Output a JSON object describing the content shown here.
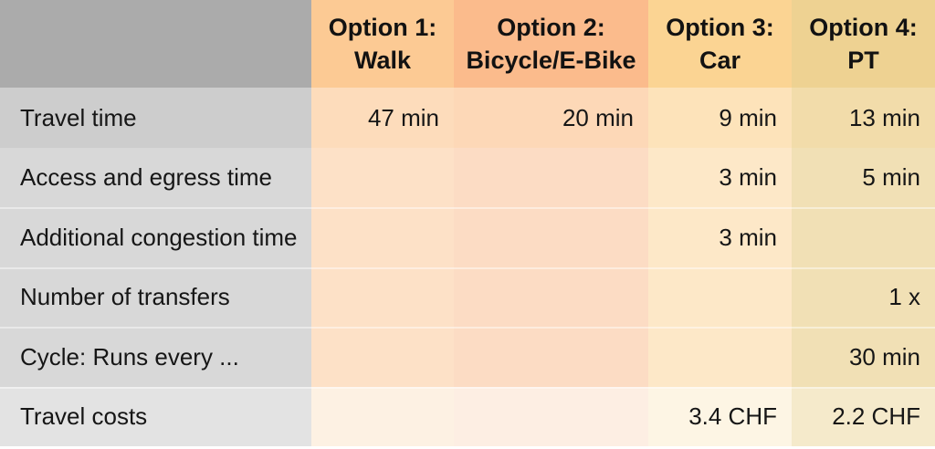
{
  "table": {
    "corner_label": "",
    "columns": [
      {
        "id": "walk",
        "header_line1": "Option 1:",
        "header_line2": "Walk",
        "header_color": "#fcca94"
      },
      {
        "id": "bicycle",
        "header_line1": "Option 2:",
        "header_line2": "Bicycle/E-Bike",
        "header_color": "#fbbb8c"
      },
      {
        "id": "car",
        "header_line1": "Option 3:",
        "header_line2": "Car",
        "header_color": "#fbd493"
      },
      {
        "id": "pt",
        "header_line1": "Option 4:",
        "header_line2": "PT",
        "header_color": "#eed292"
      }
    ],
    "rows": [
      {
        "label": "Travel time",
        "values": [
          "47 min",
          "20 min",
          "9 min",
          "13 min"
        ]
      },
      {
        "label": "Access and egress time",
        "values": [
          "",
          "",
          "3 min",
          "5 min"
        ]
      },
      {
        "label": "Additional congestion time",
        "values": [
          "",
          "",
          "3 min",
          ""
        ]
      },
      {
        "label": "Number of transfers",
        "values": [
          "",
          "",
          "",
          "1 x"
        ]
      },
      {
        "label": "Cycle: Runs every ...",
        "values": [
          "",
          "",
          "",
          "30 min"
        ]
      },
      {
        "label": "Travel costs",
        "values": [
          "",
          "",
          "3.4 CHF",
          "2.2 CHF"
        ]
      }
    ],
    "label_column_header_color": "#ababab",
    "label_column_body_color": "#d8d8d8",
    "text_color": "#161616"
  }
}
